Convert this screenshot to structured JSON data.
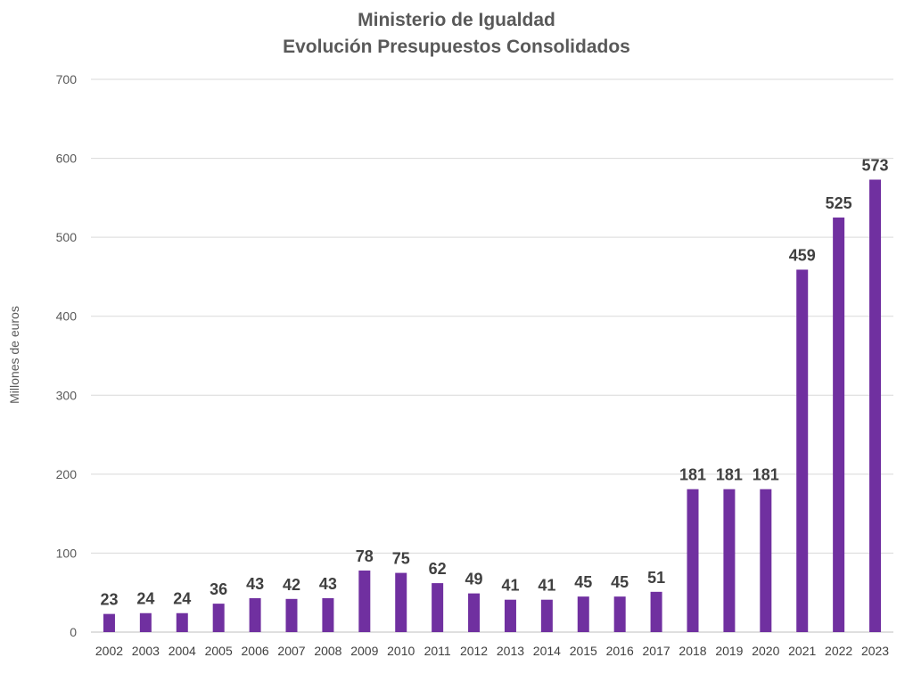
{
  "chart_data": {
    "type": "bar",
    "title_line1": "Ministerio de Igualdad",
    "title_line2": "Evolución Presupuestos Consolidados",
    "xlabel": "",
    "ylabel": "Millones de euros",
    "ylim": [
      0,
      700
    ],
    "yticks": [
      0,
      100,
      200,
      300,
      400,
      500,
      600,
      700
    ],
    "grid": true,
    "categories": [
      "2002",
      "2003",
      "2004",
      "2005",
      "2006",
      "2007",
      "2008",
      "2009",
      "2010",
      "2011",
      "2012",
      "2013",
      "2014",
      "2015",
      "2016",
      "2017",
      "2018",
      "2019",
      "2020",
      "2021",
      "2022",
      "2023"
    ],
    "values": [
      23,
      24,
      24,
      36,
      43,
      42,
      43,
      78,
      75,
      62,
      49,
      41,
      41,
      45,
      45,
      51,
      181,
      181,
      181,
      459,
      525,
      573
    ],
    "bar_color": "#7030A0"
  }
}
